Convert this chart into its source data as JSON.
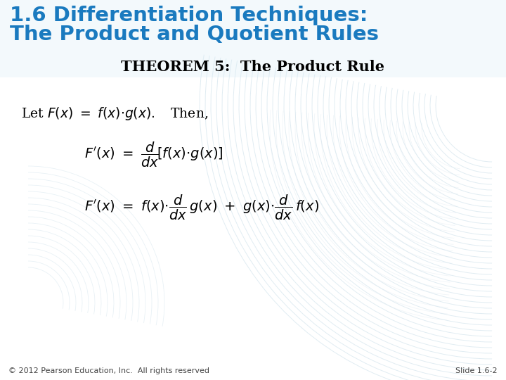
{
  "title_line1": "1.6 Differentiation Techniques:",
  "title_line2": "The Product and Quotient Rules",
  "title_color": "#1a7abf",
  "theorem_label": "THEOREM 5:  The Product Rule",
  "footer_left": "© 2012 Pearson Education, Inc.  All rights reserved",
  "footer_right": "Slide 1.6-2",
  "background_color": "#ffffff",
  "text_color": "#000000",
  "fig_width": 7.2,
  "fig_height": 5.4,
  "dpi": 100,
  "arc_color": "#c8dde8",
  "arc_color2": "#dce8f0"
}
